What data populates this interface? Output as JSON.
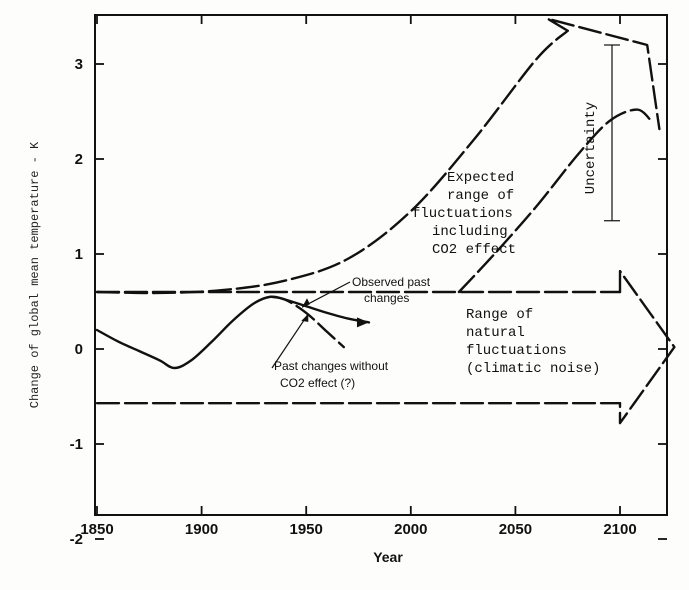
{
  "chart_data": {
    "type": "line",
    "xlabel": "Year",
    "ylabel": "Change of global mean temperature - K",
    "xlim": [
      1850,
      2125
    ],
    "ylim": [
      -2,
      3.5
    ],
    "x_ticks": [
      1850,
      1900,
      1950,
      2000,
      2050,
      2100
    ],
    "y_ticks": [
      -2,
      -1,
      0,
      1,
      2,
      3
    ],
    "x_tick_labels": [
      "1850",
      "1900",
      "1950",
      "2000",
      "2050",
      "2100"
    ],
    "y_tick_labels": [
      "-2",
      "-1",
      "0",
      "1",
      "2",
      "3"
    ],
    "grid": false,
    "series": [
      {
        "name": "Observed past changes",
        "style": "solid",
        "x": [
          1850,
          1860,
          1870,
          1880,
          1887,
          1895,
          1905,
          1915,
          1925,
          1933,
          1940,
          1950,
          1960,
          1970,
          1980
        ],
        "y": [
          0.2,
          0.08,
          -0.02,
          -0.12,
          -0.2,
          -0.12,
          0.08,
          0.3,
          0.48,
          0.55,
          0.52,
          0.45,
          0.38,
          0.32,
          0.28
        ]
      },
      {
        "name": "Past changes without CO2 effect (?)",
        "style": "dashed",
        "x": [
          1933,
          1940,
          1950,
          1960,
          1968
        ],
        "y": [
          0.55,
          0.52,
          0.38,
          0.18,
          0.02
        ]
      },
      {
        "name": "Expected range of fluctuations including CO2 effect - upper",
        "style": "dashed",
        "x": [
          1850,
          1880,
          1910,
          1940,
          1970,
          2000,
          2030,
          2060,
          2075
        ],
        "y": [
          0.6,
          0.59,
          0.62,
          0.72,
          0.95,
          1.45,
          2.2,
          3.05,
          3.35
        ]
      },
      {
        "name": "Expected range of fluctuations including CO2 effect - lower",
        "style": "dashed",
        "x": [
          2023,
          2040,
          2060,
          2080,
          2095,
          2108,
          2115
        ],
        "y": [
          0.6,
          1.0,
          1.5,
          2.05,
          2.4,
          2.52,
          2.4
        ]
      },
      {
        "name": "Range of natural fluctuations (climatic noise) - upper",
        "style": "dashed",
        "x": [
          1850,
          2100
        ],
        "y": [
          0.6,
          0.6
        ]
      },
      {
        "name": "Range of natural fluctuations (climatic noise) - lower",
        "style": "dashed",
        "x": [
          1850,
          2100
        ],
        "y": [
          -0.57,
          -0.57
        ]
      }
    ],
    "uncertainty_bar": {
      "x": 2100,
      "y_low": 1.35,
      "y_high": 3.2
    },
    "annotations": {
      "expected": [
        "Expected",
        "range of",
        "fluctuations",
        "including",
        "CO2 effect"
      ],
      "observed": [
        "Observed past",
        "changes"
      ],
      "without": [
        "Past changes without",
        "CO2 effect (?)"
      ],
      "natural": [
        "Range of",
        "natural",
        "fluctuations",
        "(climatic noise)"
      ],
      "uncertainty": "Uncertainty"
    }
  }
}
